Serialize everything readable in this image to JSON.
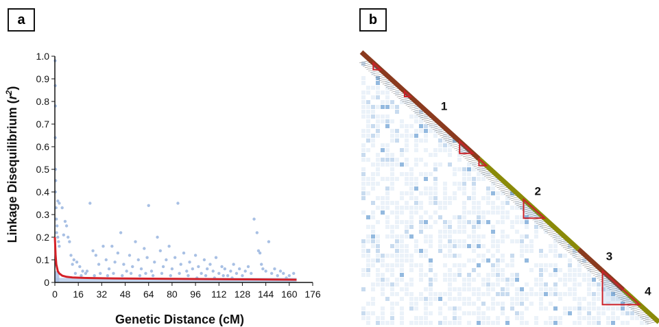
{
  "panels": {
    "a": "a",
    "b": "b"
  },
  "chart_data": [
    {
      "type": "scatter",
      "panel": "a",
      "title": "",
      "xlabel": "Genetic Distance (cM)",
      "ylabel_prefix": "Linkage Disequilibrium (",
      "ylabel_var": "r",
      "ylabel_sup": "2",
      "ylabel_suffix": ")",
      "xlim": [
        0,
        176
      ],
      "ylim": [
        0,
        1.0
      ],
      "xticks": [
        0,
        16,
        32,
        48,
        64,
        80,
        96,
        112,
        128,
        144,
        160,
        176
      ],
      "yticks": [
        "0",
        "0.1",
        "0.2",
        "0.3",
        "0.4",
        "0.5",
        "0.6",
        "0.7",
        "0.8",
        "0.9",
        "1.0"
      ],
      "grid": false,
      "colors": {
        "points": "#a8c0e4",
        "fit": "#d42027",
        "axis": "#111111"
      },
      "points": [
        [
          0.2,
          0.98
        ],
        [
          0.3,
          0.87
        ],
        [
          0.4,
          0.78
        ],
        [
          0.3,
          0.64
        ],
        [
          0.5,
          0.5
        ],
        [
          0.6,
          0.45
        ],
        [
          0.4,
          0.4
        ],
        [
          0.8,
          0.33
        ],
        [
          1.0,
          0.28
        ],
        [
          1.5,
          0.25
        ],
        [
          2.0,
          0.2
        ],
        [
          2.5,
          0.18
        ],
        [
          3.0,
          0.16
        ],
        [
          1.2,
          0.22
        ],
        [
          2,
          0.36
        ],
        [
          3,
          0.35
        ],
        [
          5,
          0.33
        ],
        [
          7,
          0.27
        ],
        [
          8,
          0.25
        ],
        [
          6,
          0.21
        ],
        [
          9,
          0.2
        ],
        [
          10,
          0.18
        ],
        [
          11,
          0.12
        ],
        [
          13,
          0.1
        ],
        [
          15,
          0.09
        ],
        [
          12,
          0.08
        ],
        [
          17,
          0.07
        ],
        [
          19,
          0.05
        ],
        [
          21,
          0.04
        ],
        [
          24,
          0.35
        ],
        [
          26,
          0.14
        ],
        [
          28,
          0.12
        ],
        [
          30,
          0.08
        ],
        [
          33,
          0.16
        ],
        [
          35,
          0.1
        ],
        [
          37,
          0.06
        ],
        [
          39,
          0.16
        ],
        [
          41,
          0.09
        ],
        [
          43,
          0.13
        ],
        [
          45,
          0.22
        ],
        [
          47,
          0.08
        ],
        [
          49,
          0.05
        ],
        [
          51,
          0.12
        ],
        [
          53,
          0.07
        ],
        [
          55,
          0.18
        ],
        [
          57,
          0.1
        ],
        [
          59,
          0.06
        ],
        [
          61,
          0.15
        ],
        [
          63,
          0.11
        ],
        [
          64,
          0.34
        ],
        [
          66,
          0.05
        ],
        [
          68,
          0.09
        ],
        [
          70,
          0.2
        ],
        [
          72,
          0.14
        ],
        [
          74,
          0.07
        ],
        [
          76,
          0.1
        ],
        [
          78,
          0.16
        ],
        [
          80,
          0.06
        ],
        [
          82,
          0.11
        ],
        [
          84,
          0.35
        ],
        [
          86,
          0.08
        ],
        [
          88,
          0.13
        ],
        [
          90,
          0.05
        ],
        [
          92,
          0.09
        ],
        [
          94,
          0.06
        ],
        [
          96,
          0.12
        ],
        [
          98,
          0.07
        ],
        [
          100,
          0.04
        ],
        [
          102,
          0.1
        ],
        [
          104,
          0.06
        ],
        [
          106,
          0.08
        ],
        [
          108,
          0.05
        ],
        [
          110,
          0.11
        ],
        [
          112,
          0.04
        ],
        [
          114,
          0.07
        ],
        [
          116,
          0.06
        ],
        [
          118,
          0.03
        ],
        [
          120,
          0.05
        ],
        [
          122,
          0.08
        ],
        [
          124,
          0.04
        ],
        [
          126,
          0.06
        ],
        [
          128,
          0.03
        ],
        [
          130,
          0.05
        ],
        [
          132,
          0.07
        ],
        [
          134,
          0.04
        ],
        [
          136,
          0.28
        ],
        [
          138,
          0.22
        ],
        [
          139,
          0.14
        ],
        [
          140,
          0.13
        ],
        [
          141,
          0.08
        ],
        [
          142,
          0.06
        ],
        [
          144,
          0.05
        ],
        [
          146,
          0.18
        ],
        [
          148,
          0.04
        ],
        [
          150,
          0.06
        ],
        [
          152,
          0.03
        ],
        [
          154,
          0.05
        ],
        [
          156,
          0.04
        ],
        [
          158,
          0.02
        ],
        [
          160,
          0.03
        ],
        [
          163,
          0.04
        ],
        [
          14,
          0.04
        ],
        [
          18,
          0.03
        ],
        [
          22,
          0.05
        ],
        [
          27,
          0.03
        ],
        [
          31,
          0.04
        ],
        [
          36,
          0.03
        ],
        [
          40,
          0.04
        ],
        [
          46,
          0.03
        ],
        [
          52,
          0.04
        ],
        [
          58,
          0.03
        ],
        [
          62,
          0.04
        ],
        [
          67,
          0.03
        ],
        [
          73,
          0.04
        ],
        [
          79,
          0.03
        ],
        [
          85,
          0.04
        ],
        [
          91,
          0.03
        ],
        [
          97,
          0.02
        ],
        [
          103,
          0.03
        ],
        [
          109,
          0.02
        ],
        [
          115,
          0.03
        ],
        [
          121,
          0.02
        ]
      ],
      "fit": [
        [
          0,
          0.2
        ],
        [
          0.5,
          0.12
        ],
        [
          1,
          0.08
        ],
        [
          2,
          0.05
        ],
        [
          3,
          0.04
        ],
        [
          5,
          0.03
        ],
        [
          8,
          0.025
        ],
        [
          12,
          0.022
        ],
        [
          20,
          0.02
        ],
        [
          40,
          0.018
        ],
        [
          80,
          0.016
        ],
        [
          120,
          0.014
        ],
        [
          165,
          0.012
        ]
      ]
    },
    {
      "type": "heatmap",
      "panel": "b",
      "colors": {
        "cells": "#3a7fc4",
        "blocks": "#cc2027",
        "diag_brown": "#8a3a1e",
        "diag_olive": "#8a8a08",
        "hatch": "#555555"
      },
      "diagonal_segments": [
        {
          "color": "brown",
          "from": 0.0,
          "to": 0.395
        },
        {
          "color": "olive",
          "from": 0.395,
          "to": 0.73
        },
        {
          "color": "brown",
          "from": 0.73,
          "to": 0.88
        },
        {
          "color": "olive",
          "from": 0.88,
          "to": 1.0
        }
      ],
      "ld_blocks": [
        {
          "start": 0.04,
          "end": 0.065
        },
        {
          "start": 0.145,
          "end": 0.165
        },
        {
          "start": 0.33,
          "end": 0.375
        },
        {
          "start": 0.395,
          "end": 0.42
        },
        {
          "start": 0.545,
          "end": 0.615
        },
        {
          "start": 0.81,
          "end": 0.935
        }
      ],
      "block_labels": [
        {
          "text": "1",
          "pos": 0.23
        },
        {
          "text": "2",
          "pos": 0.545
        },
        {
          "text": "3",
          "pos": 0.785
        },
        {
          "text": "4",
          "pos": 0.915
        }
      ]
    }
  ]
}
